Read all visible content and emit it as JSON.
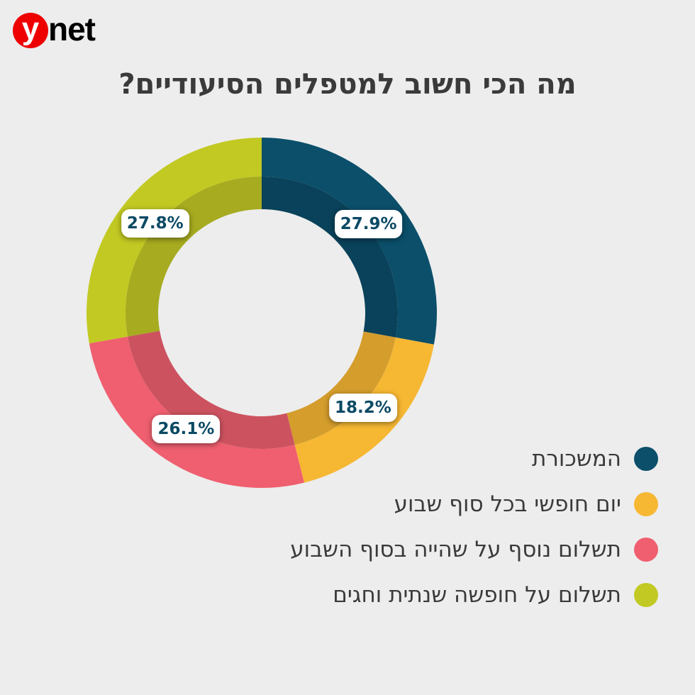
{
  "logo": {
    "y": "y",
    "net": "net"
  },
  "title": "מה הכי חשוב למטפלים הסיעודיים?",
  "chart_data": {
    "type": "pie",
    "title": "מה הכי חשוב למטפלים הסיעודיים?",
    "donut": true,
    "categories": [
      "המשכורת",
      "יום חופשי בכל סוף שבוע",
      "תשלום נוסף על שהייה בסוף השבוע",
      "תשלום על חופשה שנתית וחגים"
    ],
    "values": [
      27.9,
      18.2,
      26.1,
      27.8
    ],
    "value_labels": [
      "27.9%",
      "18.2%",
      "26.1%",
      "27.8%"
    ],
    "colors": [
      "#0b4f6a",
      "#f6b733",
      "#ef5f6f",
      "#c2c922"
    ],
    "inner_colors": [
      "#09425a",
      "#d49d2c",
      "#cd5260",
      "#a6ab1f"
    ],
    "legend_position": "bottom-right",
    "start": "top",
    "direction": "clockwise"
  }
}
